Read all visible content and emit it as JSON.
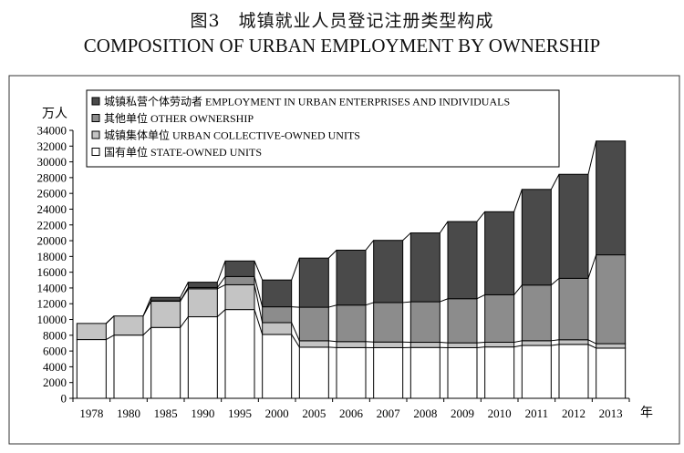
{
  "title_cn": "图3　城镇就业人员登记注册类型构成",
  "title_en": "COMPOSITION OF URBAN EMPLOYMENT BY OWNERSHIP",
  "chart_data": {
    "type": "bar",
    "stacked": true,
    "categories": [
      "1978",
      "1980",
      "1985",
      "1990",
      "1995",
      "2000",
      "2005",
      "2006",
      "2007",
      "2008",
      "2009",
      "2010",
      "2011",
      "2012",
      "2013"
    ],
    "series": [
      {
        "name": "国有单位 STATE-OWNED UNITS",
        "color": "#ffffff",
        "values": [
          7451,
          8019,
          8990,
          10346,
          11261,
          8102,
          6488,
          6430,
          6424,
          6447,
          6420,
          6516,
          6704,
          6839,
          6365
        ]
      },
      {
        "name": "城镇集体单位 URBAN COLLECTIVE-OWNED UNITS",
        "color": "#c4c4c4",
        "values": [
          2048,
          2425,
          3324,
          3549,
          3147,
          1499,
          810,
          764,
          718,
          662,
          618,
          597,
          603,
          589,
          566
        ]
      },
      {
        "name": "其他单位 OTHER OWNERSHIP",
        "color": "#8c8c8c",
        "values": [
          0,
          0,
          44,
          164,
          1044,
          2009,
          4258,
          4636,
          5008,
          5141,
          5598,
          6022,
          7061,
          7793,
          11272
        ]
      },
      {
        "name": "城镇私营个体劳动者 EMPLOYMENT IN URBAN ENTERPRISES AND INDIVIDUALS",
        "color": "#4a4a4a",
        "values": [
          0,
          0,
          450,
          671,
          1974,
          3404,
          6236,
          6967,
          7891,
          8733,
          9789,
          10538,
          12139,
          13200,
          14435
        ]
      }
    ],
    "y_unit": "万人",
    "x_unit": "年",
    "ylim": [
      0,
      34000
    ],
    "yticks": [
      0,
      2000,
      4000,
      6000,
      8000,
      10000,
      12000,
      14000,
      16000,
      18000,
      20000,
      22000,
      24000,
      26000,
      28000,
      30000,
      32000,
      34000
    ],
    "legend_position": "top-left",
    "grid": false
  }
}
